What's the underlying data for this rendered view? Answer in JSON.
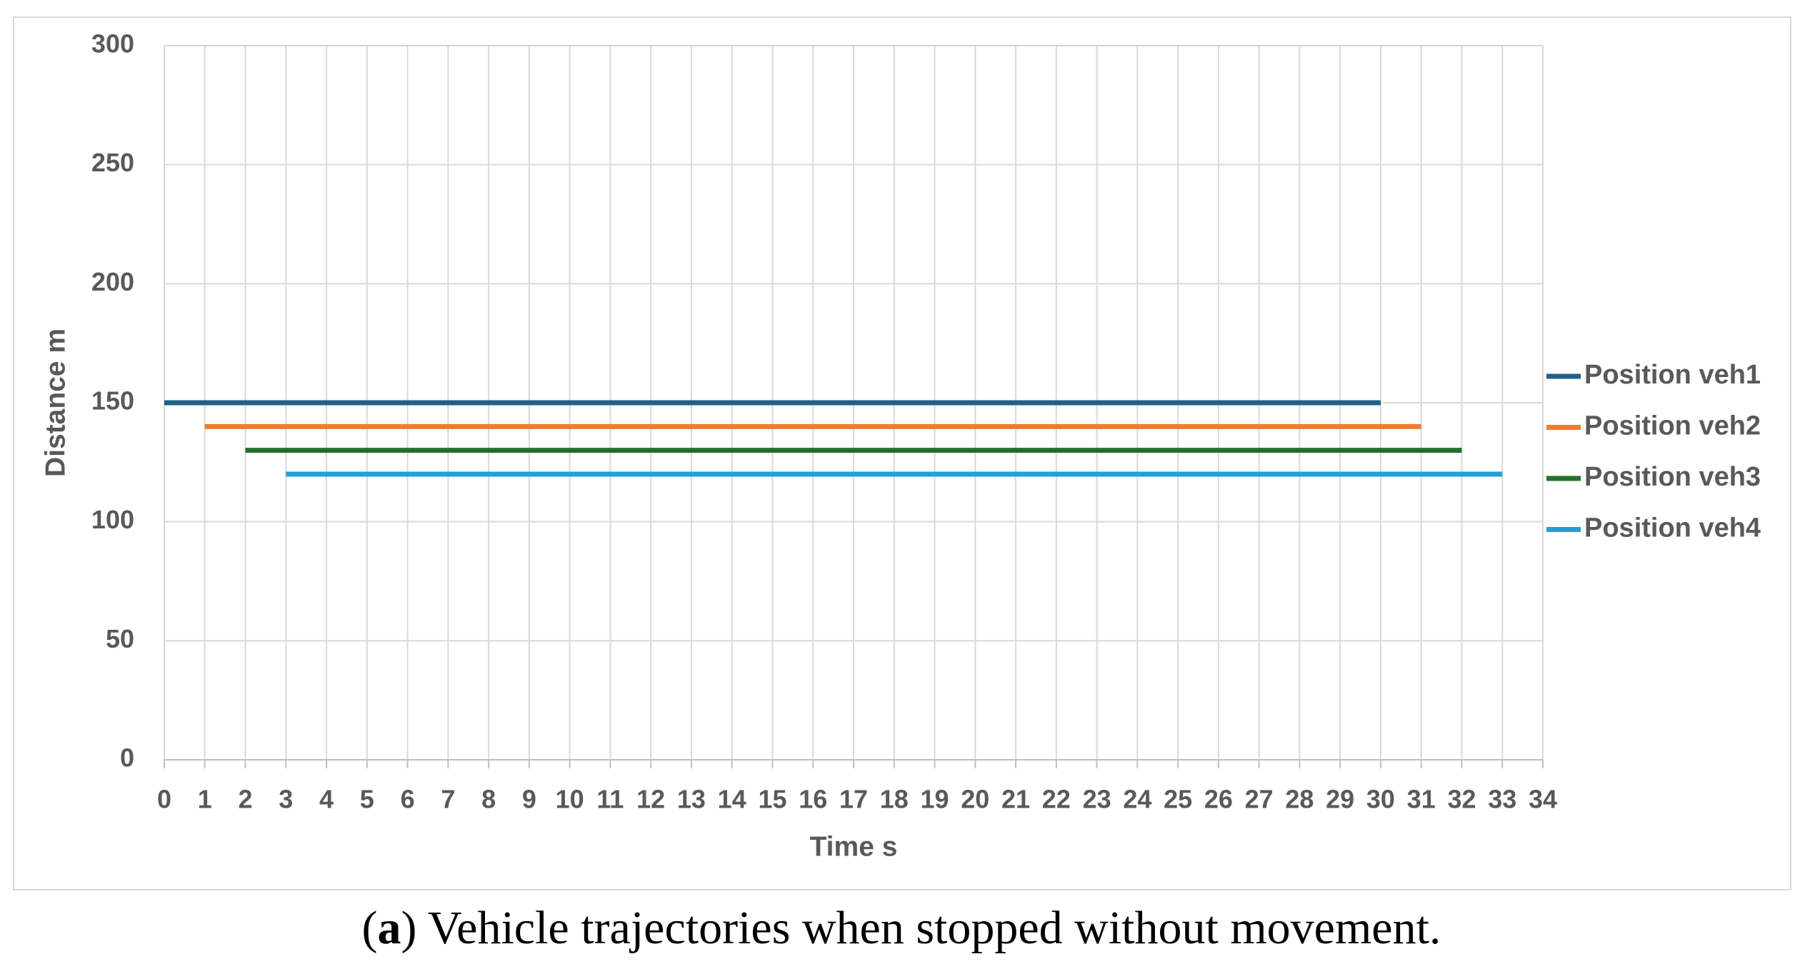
{
  "chart_data": {
    "type": "line",
    "xlabel": "Time s",
    "ylabel": "Distance m",
    "xlim": [
      0,
      34
    ],
    "ylim": [
      0,
      300
    ],
    "xticks": [
      0,
      1,
      2,
      3,
      4,
      5,
      6,
      7,
      8,
      9,
      10,
      11,
      12,
      13,
      14,
      15,
      16,
      17,
      18,
      19,
      20,
      21,
      22,
      23,
      24,
      25,
      26,
      27,
      28,
      29,
      30,
      31,
      32,
      33,
      34
    ],
    "yticks": [
      0,
      50,
      100,
      150,
      200,
      250,
      300
    ],
    "grid": true,
    "legend": "right",
    "series": [
      {
        "name": "Position veh1",
        "color": "#215f86",
        "x": [
          0,
          30
        ],
        "values": [
          150,
          150
        ]
      },
      {
        "name": "Position veh2",
        "color": "#ed7d31",
        "x": [
          1,
          31
        ],
        "values": [
          140,
          140
        ]
      },
      {
        "name": "Position veh3",
        "color": "#23702b",
        "x": [
          2,
          32
        ],
        "values": [
          130,
          130
        ]
      },
      {
        "name": "Position veh4",
        "color": "#229fd8",
        "x": [
          3,
          33
        ],
        "values": [
          120,
          120
        ]
      }
    ],
    "caption": [
      "(",
      "a",
      ") Vehicle trajectories when stopped without movement."
    ]
  }
}
